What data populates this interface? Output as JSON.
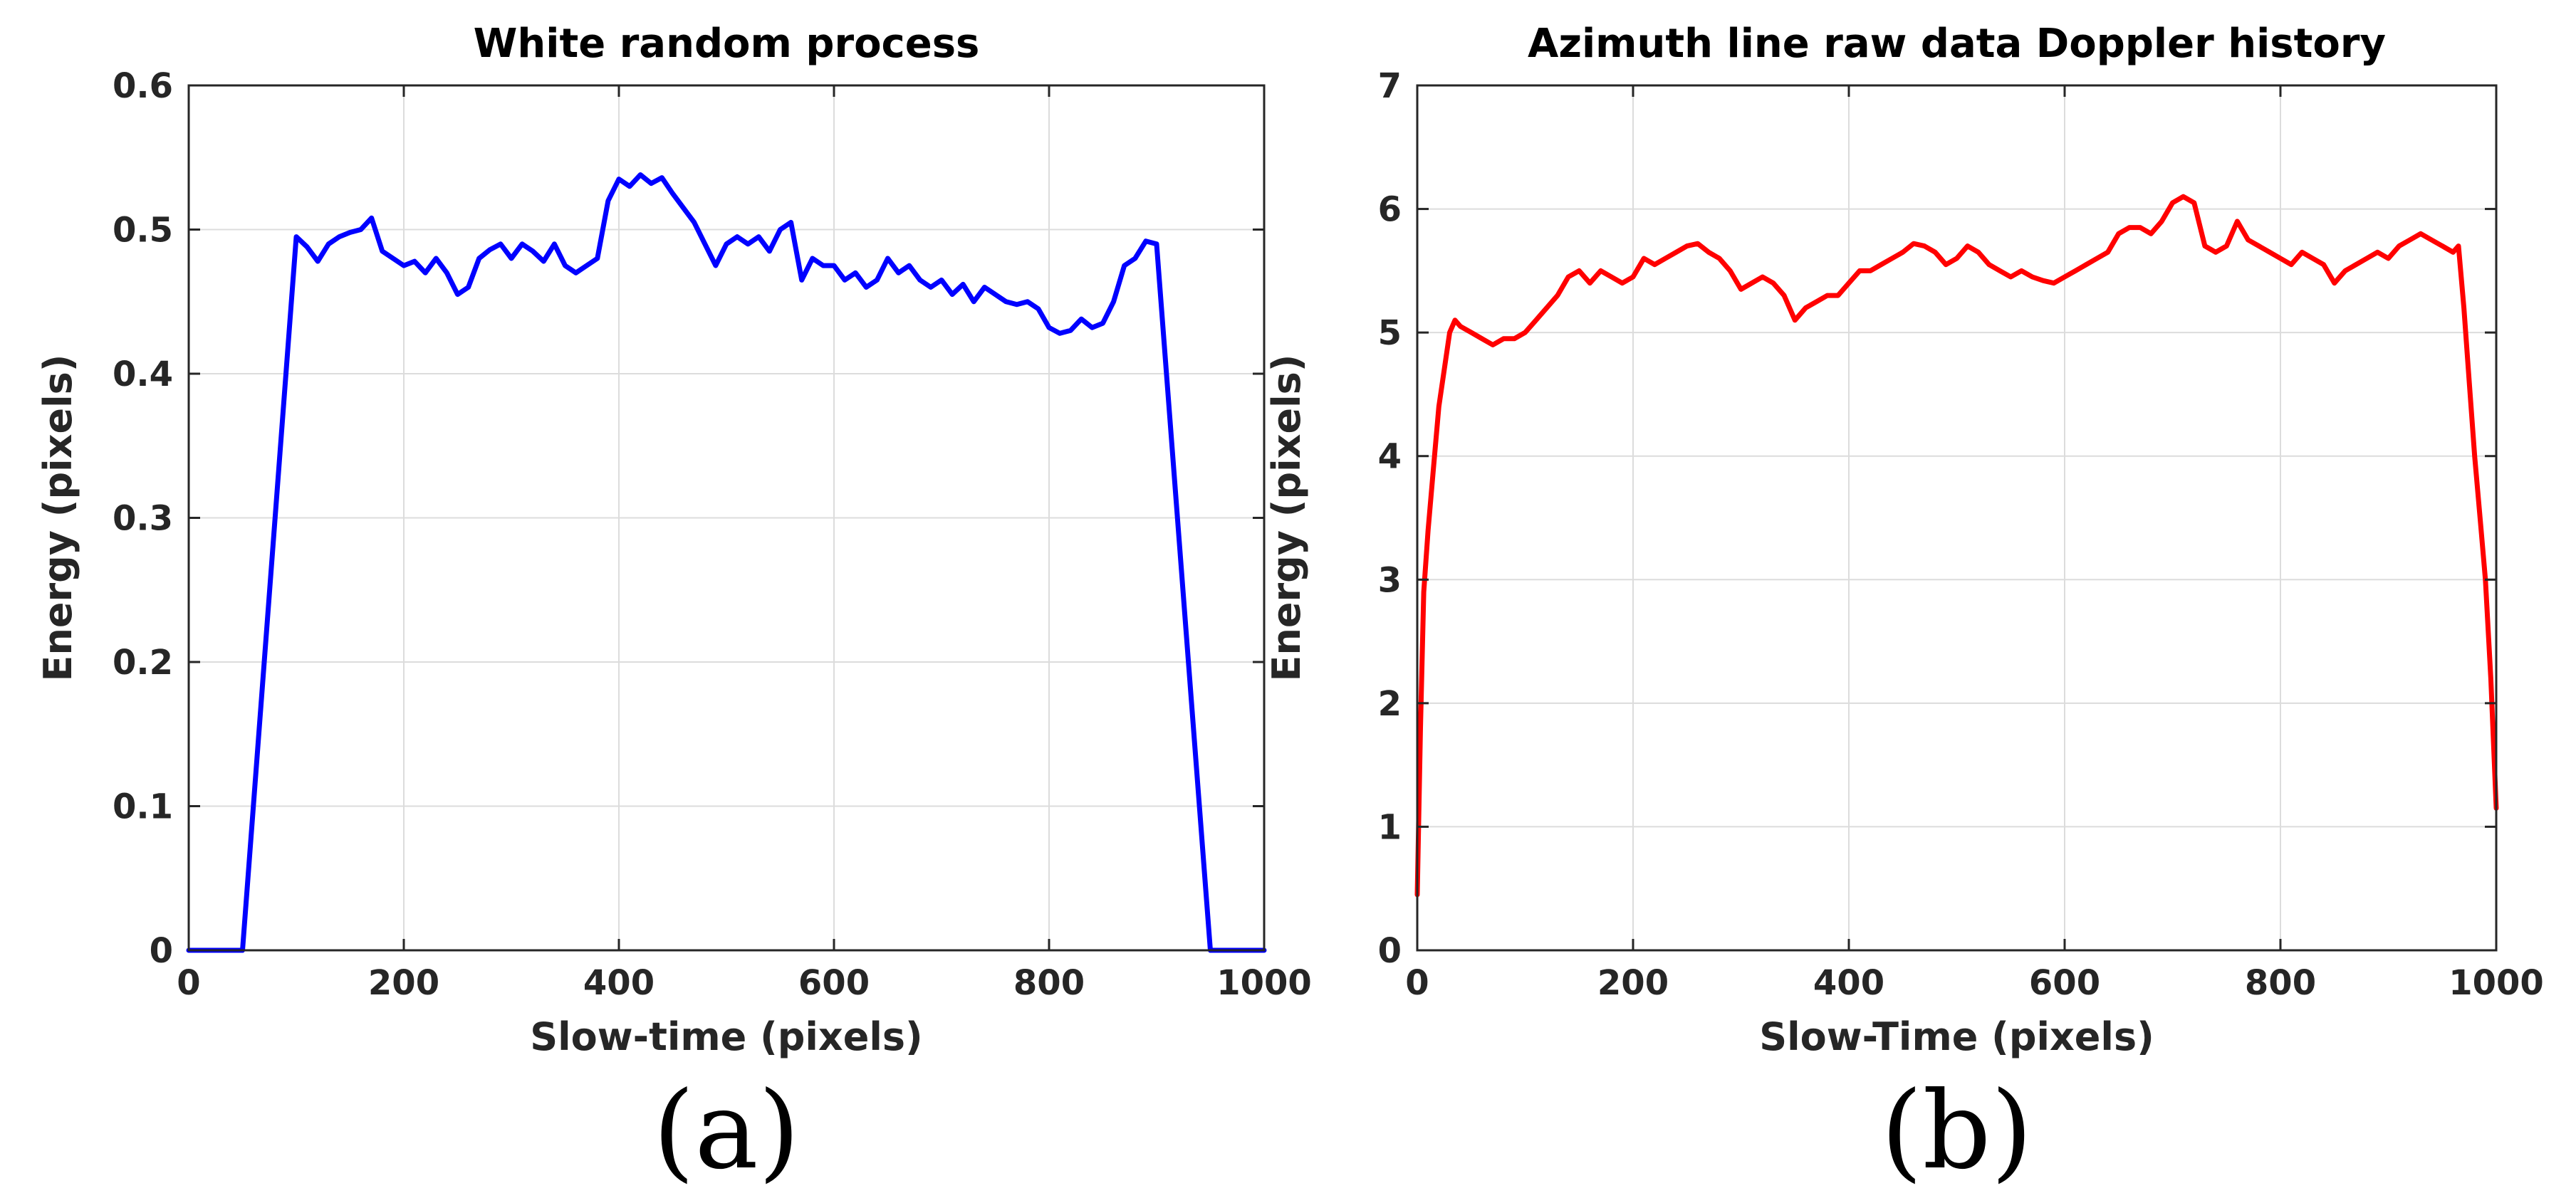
{
  "chart_data": [
    {
      "type": "line",
      "title": "White random process",
      "xlabel": "Slow-time (pixels)",
      "ylabel": "Energy (pixels)",
      "xlim": [
        0,
        1000
      ],
      "ylim": [
        0,
        0.6
      ],
      "xticks": [
        0,
        200,
        400,
        600,
        800,
        1000
      ],
      "yticks": [
        0,
        0.1,
        0.2,
        0.3,
        0.4,
        0.5,
        0.6
      ],
      "ytick_labels": [
        "0",
        "0.1",
        "0.2",
        "0.3",
        "0.4",
        "0.5",
        "0.6"
      ],
      "grid": true,
      "panel_label": "(a)",
      "series": [
        {
          "name": "white random process",
          "color": "#0000ff",
          "x": [
            0,
            50,
            100,
            110,
            120,
            130,
            140,
            150,
            160,
            170,
            180,
            190,
            200,
            210,
            220,
            230,
            240,
            250,
            260,
            270,
            280,
            290,
            300,
            310,
            320,
            330,
            340,
            350,
            360,
            370,
            380,
            390,
            400,
            410,
            420,
            430,
            440,
            450,
            460,
            470,
            480,
            490,
            500,
            510,
            520,
            530,
            540,
            550,
            560,
            570,
            580,
            590,
            600,
            610,
            620,
            630,
            640,
            650,
            660,
            670,
            680,
            690,
            700,
            710,
            720,
            730,
            740,
            750,
            760,
            770,
            780,
            790,
            800,
            810,
            820,
            830,
            840,
            850,
            860,
            870,
            880,
            890,
            900,
            950,
            1000
          ],
          "values": [
            0,
            0,
            0.495,
            0.488,
            0.478,
            0.49,
            0.495,
            0.498,
            0.5,
            0.508,
            0.485,
            0.48,
            0.475,
            0.478,
            0.47,
            0.48,
            0.47,
            0.455,
            0.46,
            0.48,
            0.486,
            0.49,
            0.48,
            0.49,
            0.485,
            0.478,
            0.49,
            0.475,
            0.47,
            0.475,
            0.48,
            0.52,
            0.535,
            0.53,
            0.538,
            0.532,
            0.536,
            0.525,
            0.515,
            0.505,
            0.49,
            0.475,
            0.49,
            0.495,
            0.49,
            0.495,
            0.485,
            0.5,
            0.505,
            0.465,
            0.48,
            0.475,
            0.475,
            0.465,
            0.47,
            0.46,
            0.465,
            0.48,
            0.47,
            0.475,
            0.465,
            0.46,
            0.465,
            0.455,
            0.462,
            0.45,
            0.46,
            0.455,
            0.45,
            0.448,
            0.45,
            0.445,
            0.432,
            0.428,
            0.43,
            0.438,
            0.432,
            0.435,
            0.45,
            0.475,
            0.48,
            0.492,
            0.49,
            0,
            0
          ]
        }
      ]
    },
    {
      "type": "line",
      "title": "Azimuth line raw data Doppler history",
      "xlabel": "Slow-Time (pixels)",
      "ylabel": "Energy (pixels)",
      "xlim": [
        0,
        1000
      ],
      "ylim": [
        0,
        7
      ],
      "xticks": [
        0,
        200,
        400,
        600,
        800,
        1000
      ],
      "yticks": [
        0,
        1,
        2,
        3,
        4,
        5,
        6,
        7
      ],
      "ytick_labels": [
        "0",
        "1",
        "2",
        "3",
        "4",
        "5",
        "6",
        "7"
      ],
      "grid": true,
      "panel_label": "(b)",
      "series": [
        {
          "name": "azimuth line raw data doppler history",
          "color": "#ff0000",
          "x": [
            0,
            3,
            6,
            10,
            15,
            20,
            25,
            30,
            35,
            40,
            50,
            60,
            70,
            80,
            90,
            100,
            110,
            120,
            130,
            140,
            150,
            160,
            170,
            180,
            190,
            200,
            210,
            220,
            230,
            240,
            250,
            260,
            270,
            280,
            290,
            300,
            310,
            320,
            330,
            340,
            350,
            360,
            370,
            380,
            390,
            400,
            410,
            420,
            430,
            440,
            450,
            460,
            470,
            480,
            490,
            500,
            510,
            520,
            530,
            540,
            550,
            560,
            570,
            580,
            590,
            600,
            610,
            620,
            630,
            640,
            650,
            660,
            670,
            680,
            690,
            700,
            710,
            720,
            730,
            740,
            750,
            760,
            770,
            780,
            790,
            800,
            810,
            820,
            830,
            840,
            850,
            860,
            870,
            880,
            890,
            900,
            910,
            920,
            930,
            940,
            950,
            960,
            965,
            970,
            975,
            980,
            985,
            990,
            995,
            1000
          ],
          "values": [
            0.45,
            1.8,
            2.9,
            3.4,
            3.9,
            4.4,
            4.7,
            5.0,
            5.1,
            5.05,
            5.0,
            4.95,
            4.9,
            4.95,
            4.95,
            5.0,
            5.1,
            5.2,
            5.3,
            5.45,
            5.5,
            5.4,
            5.5,
            5.45,
            5.4,
            5.45,
            5.6,
            5.55,
            5.6,
            5.65,
            5.7,
            5.72,
            5.65,
            5.6,
            5.5,
            5.35,
            5.4,
            5.45,
            5.4,
            5.3,
            5.1,
            5.2,
            5.25,
            5.3,
            5.3,
            5.4,
            5.5,
            5.5,
            5.55,
            5.6,
            5.65,
            5.72,
            5.7,
            5.65,
            5.55,
            5.6,
            5.7,
            5.65,
            5.55,
            5.5,
            5.45,
            5.5,
            5.45,
            5.42,
            5.4,
            5.45,
            5.5,
            5.55,
            5.6,
            5.65,
            5.8,
            5.85,
            5.85,
            5.8,
            5.9,
            6.05,
            6.1,
            6.05,
            5.7,
            5.65,
            5.7,
            5.9,
            5.75,
            5.7,
            5.65,
            5.6,
            5.55,
            5.65,
            5.6,
            5.55,
            5.4,
            5.5,
            5.55,
            5.6,
            5.65,
            5.6,
            5.7,
            5.75,
            5.8,
            5.75,
            5.7,
            5.65,
            5.7,
            5.2,
            4.6,
            4.0,
            3.5,
            3.0,
            2.2,
            1.15
          ]
        }
      ]
    }
  ]
}
